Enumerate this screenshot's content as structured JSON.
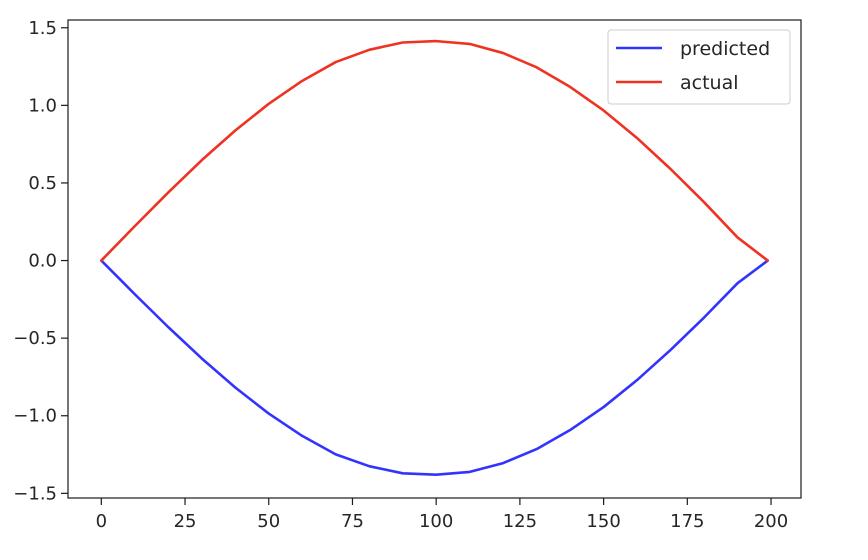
{
  "chart_data": {
    "type": "line",
    "title": "",
    "xlabel": "",
    "ylabel": "",
    "xlim": [
      -9.95,
      208.95
    ],
    "ylim": [
      -1.53,
      1.55
    ],
    "xticks": [
      0,
      25,
      50,
      75,
      100,
      125,
      150,
      175,
      200
    ],
    "yticks": [
      -1.5,
      -1.0,
      -0.5,
      0.0,
      0.5,
      1.0,
      1.5
    ],
    "ytick_labels": [
      "−1.5",
      "−1.0",
      "−0.5",
      "0.0",
      "0.5",
      "1.0",
      "1.5"
    ],
    "grid": false,
    "legend": {
      "position": "upper right"
    },
    "series": [
      {
        "name": "predicted",
        "color": "#3333ff",
        "formula": "y = -1.38 * sin(pi * x / 199)",
        "x": [
          0,
          10,
          20,
          30,
          40,
          50,
          60,
          70,
          80,
          90,
          100,
          110,
          120,
          130,
          140,
          150,
          160,
          170,
          180,
          190,
          199
        ],
        "values": [
          0.0,
          -0.217,
          -0.429,
          -0.631,
          -0.818,
          -0.986,
          -1.13,
          -1.249,
          -1.325,
          -1.371,
          -1.38,
          -1.362,
          -1.305,
          -1.215,
          -1.092,
          -0.944,
          -0.77,
          -0.576,
          -0.367,
          -0.146,
          0.0
        ]
      },
      {
        "name": "actual",
        "color": "#ee3322",
        "formula": "y = 1.414 * sin(pi * x / 199)",
        "x": [
          0,
          10,
          20,
          30,
          40,
          50,
          60,
          70,
          80,
          90,
          100,
          110,
          120,
          130,
          140,
          150,
          160,
          170,
          180,
          190,
          199
        ],
        "values": [
          0.0,
          0.222,
          0.439,
          0.647,
          0.838,
          1.01,
          1.158,
          1.279,
          1.358,
          1.405,
          1.414,
          1.396,
          1.337,
          1.245,
          1.119,
          0.967,
          0.789,
          0.59,
          0.376,
          0.149,
          0.0
        ]
      }
    ]
  }
}
